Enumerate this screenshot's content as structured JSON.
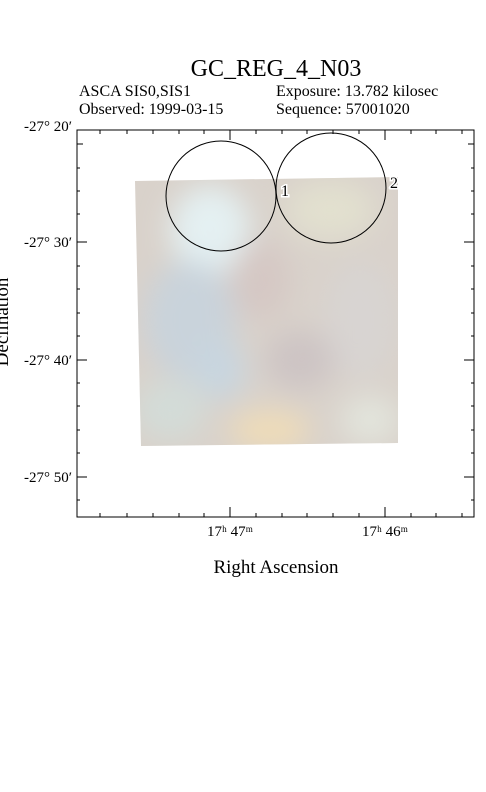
{
  "header": {
    "title": "GC_REG_4_N03",
    "instrument": "ASCA SIS0,SIS1",
    "exposure": "Exposure: 13.782 kilosec",
    "observed": "Observed: 1999-03-15",
    "sequence": "Sequence: 57001020"
  },
  "plot": {
    "y_label": "Declination",
    "x_label": "Right Ascension",
    "y_ticks": [
      "-27° 20′",
      "-27° 30′",
      "-27° 40′",
      "-27° 50′"
    ],
    "x_ticks": [
      "17ʰ 47ᵐ",
      "17ʰ 46ᵐ"
    ],
    "regions": [
      "1",
      "2"
    ]
  }
}
